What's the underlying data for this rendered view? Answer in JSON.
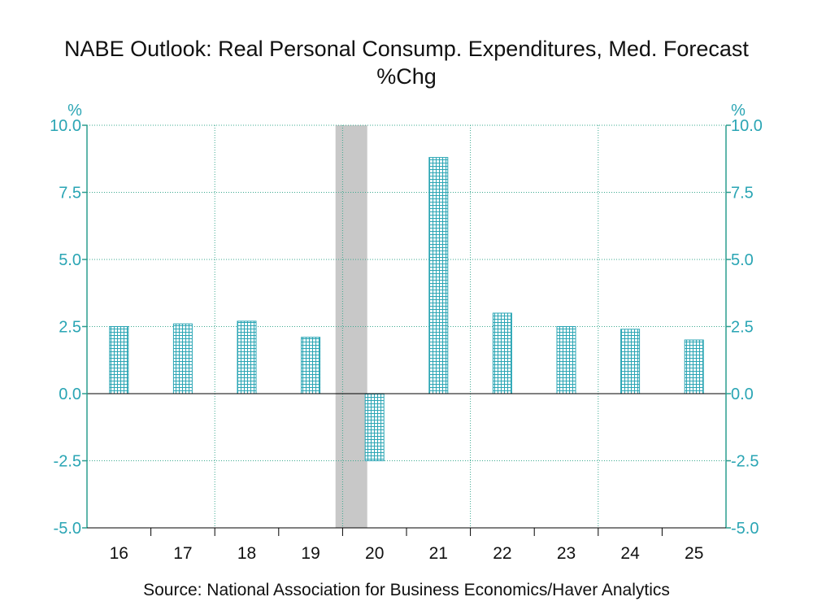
{
  "chart_data": {
    "type": "bar",
    "title": "NABE Outlook: Real Personal Consump. Expenditures, Med. Forecast",
    "subtitle": "%Chg",
    "ylabel_left": "%",
    "ylabel_right": "%",
    "categories": [
      "16",
      "17",
      "18",
      "19",
      "20",
      "21",
      "22",
      "23",
      "24",
      "25"
    ],
    "values": [
      2.5,
      2.6,
      2.7,
      2.1,
      -2.5,
      8.8,
      3.0,
      2.5,
      2.4,
      2.0
    ],
    "ylim": [
      -5.0,
      10.0
    ],
    "yticks": [
      "10.0",
      "7.5",
      "5.0",
      "2.5",
      "0.0",
      "-2.5",
      "-5.0"
    ],
    "ytick_values": [
      10.0,
      7.5,
      5.0,
      2.5,
      0.0,
      -2.5,
      -5.0
    ],
    "recession_shading": [
      "20"
    ],
    "grid": true,
    "colors": {
      "bar": "#2aa5b4",
      "axis": "#2a9d8f",
      "shade": "#c8c8c8",
      "grid": "#3aa98f"
    }
  },
  "source": "Source:  National Association for Business Economics/Haver Analytics"
}
